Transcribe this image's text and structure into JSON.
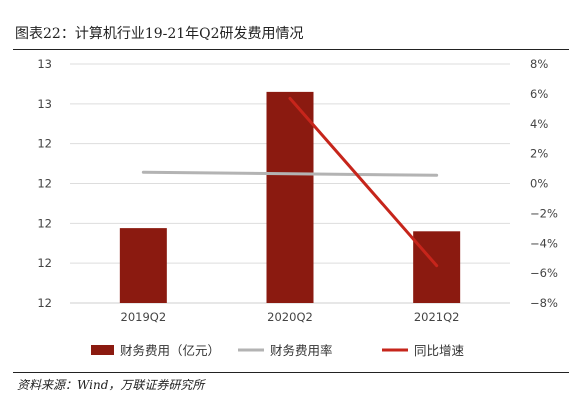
{
  "title": "图表22：计算机行业19-21年Q2研发费用情况",
  "source": "资料来源：Wind，万联证券研究所",
  "chart_data": {
    "type": "bar",
    "categories": [
      "2019Q2",
      "2020Q2",
      "2021Q2"
    ],
    "left_axis": {
      "tick_labels": [
        "13",
        "13",
        "12",
        "12",
        "12",
        "12",
        "12"
      ],
      "range": [
        0,
        6
      ]
    },
    "right_axis": {
      "tick_labels": [
        "8%",
        "6%",
        "4%",
        "2%",
        "0%",
        "−2%",
        "−4%",
        "−6%",
        "−8%"
      ],
      "range": [
        -8,
        8
      ]
    },
    "series": [
      {
        "name": "财务费用（亿元）",
        "type": "bar",
        "axis": "left",
        "values": [
          1.88,
          5.3,
          1.8
        ],
        "color": "#8b1a10"
      },
      {
        "name": "财务费用率",
        "type": "line",
        "axis": "right",
        "values": [
          0.75,
          0.65,
          0.55
        ],
        "color": "#b3b3b3"
      },
      {
        "name": "同比增速",
        "type": "line",
        "axis": "right",
        "values": [
          null,
          5.7,
          -5.5
        ],
        "color": "#c6251b"
      }
    ],
    "legend_position": "bottom",
    "grid": true
  }
}
